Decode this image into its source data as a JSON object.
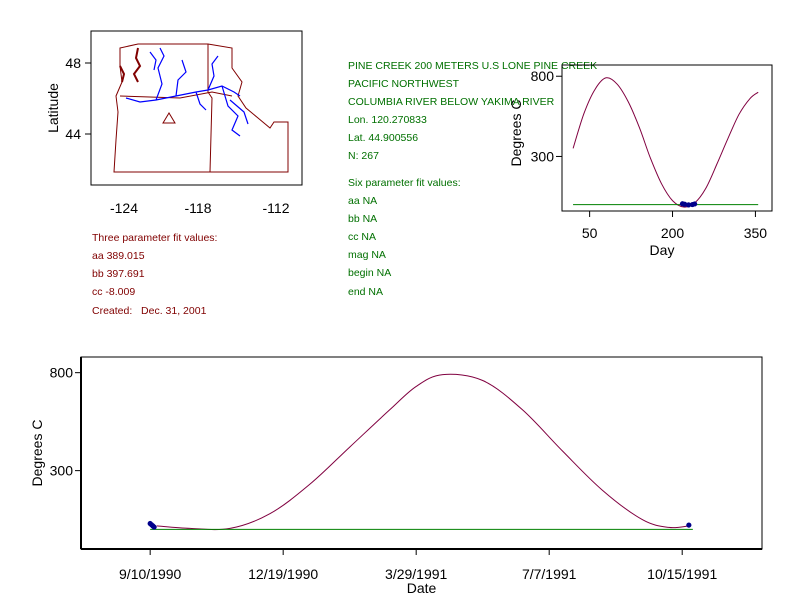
{
  "map": {
    "ylabel": "Latitude",
    "x_ticks": [
      "-124",
      "-118",
      "-112"
    ],
    "y_ticks": [
      "48",
      "44"
    ],
    "station_marker": "triangle-icon"
  },
  "three_param": {
    "heading": "Three parameter fit values:",
    "lines": [
      "aa 389.015",
      "bb 397.691",
      "cc -8.009",
      "Created:   Dec. 31, 2001"
    ]
  },
  "station_info": {
    "lines": [
      "PINE CREEK 200 METERS U.S LONE PINE CREEK",
      "PACIFIC NORTHWEST",
      "COLUMBIA RIVER BELOW YAKIMA RIVER",
      "Lon. 120.270833",
      "Lat. 44.900556",
      "N: 267"
    ]
  },
  "six_param": {
    "heading": "Six parameter fit values:",
    "lines": [
      "aa NA",
      "bb NA",
      "cc NA",
      "mag NA",
      "begin NA",
      "end NA"
    ]
  },
  "colors": {
    "curve": "#800040",
    "fit_line": "#008000",
    "points": "#00008b",
    "rivers": "#0000ff",
    "borders": "#800000",
    "text_red": "#800000",
    "text_green": "#007000"
  },
  "chart_data": [
    {
      "type": "line",
      "name": "day-chart",
      "xlabel": "Day",
      "ylabel": "Degrees C",
      "x_ticks": [
        50,
        200,
        350
      ],
      "y_ticks": [
        800,
        300
      ],
      "xlim": [
        0,
        380
      ],
      "ylim": [
        -40,
        870
      ],
      "series": [
        {
          "kind": "curve",
          "x": [
            20,
            40,
            60,
            80,
            100,
            120,
            140,
            160,
            180,
            200,
            220,
            240,
            260,
            280,
            300,
            320,
            340,
            355
          ],
          "y": [
            350,
            570,
            720,
            790,
            750,
            640,
            480,
            290,
            130,
            25,
            -15,
            10,
            100,
            250,
            410,
            560,
            660,
            700
          ]
        },
        {
          "kind": "flat",
          "x": [
            20,
            355
          ],
          "y": [
            0,
            0
          ]
        },
        {
          "kind": "points",
          "x": [
            218,
            222,
            229,
            236,
            240
          ],
          "y": [
            5,
            2,
            -2,
            0,
            4
          ]
        }
      ]
    },
    {
      "type": "line",
      "name": "date-chart",
      "xlabel": "Date",
      "ylabel": "Degrees C",
      "x_ticks": [
        "9/10/1990",
        "12/19/1990",
        "3/29/1991",
        "7/7/1991",
        "10/15/1991"
      ],
      "y_ticks": [
        800,
        300
      ],
      "xlim": [
        -52,
        460
      ],
      "ylim": [
        -100,
        880
      ],
      "series": [
        {
          "kind": "curve",
          "x": [
            5,
            30,
            60,
            90,
            120,
            150,
            180,
            200,
            220,
            250,
            280,
            310,
            340,
            370,
            390,
            405
          ],
          "y": [
            18,
            5,
            5,
            80,
            230,
            420,
            610,
            730,
            790,
            760,
            610,
            400,
            200,
            50,
            10,
            18
          ]
        },
        {
          "kind": "flat",
          "x": [
            0,
            408
          ],
          "y": [
            0,
            0
          ]
        },
        {
          "kind": "points",
          "x": [
            0,
            1,
            2,
            3,
            405
          ],
          "y": [
            30,
            24,
            18,
            12,
            22
          ]
        }
      ]
    }
  ]
}
